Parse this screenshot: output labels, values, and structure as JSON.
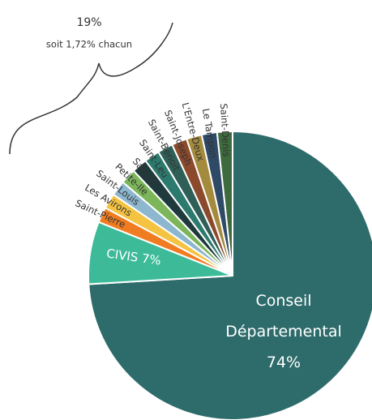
{
  "chart_data": {
    "type": "pie",
    "categories": [
      "Conseil Départemental",
      "CIVIS",
      "Saint-Pierre",
      "Les Avirons",
      "Saint-Louis",
      "Petite-Ile",
      "Salazie",
      "Saint-Leu",
      "Saint-Benoit",
      "Saint-Joseph",
      "L'Entre-Deux",
      "Le Tampon",
      "Saint-Denis"
    ],
    "values": [
      74,
      7,
      1.72,
      1.72,
      1.72,
      1.72,
      1.72,
      1.72,
      1.72,
      1.72,
      1.72,
      1.72,
      1.72
    ],
    "value_labels": [
      "74%",
      "7%",
      null,
      null,
      null,
      null,
      null,
      null,
      null,
      null,
      null,
      null,
      null
    ],
    "colors": [
      "#2e6b6b",
      "#3dbb98",
      "#f07c22",
      "#f5c342",
      "#8db6cf",
      "#7cb55a",
      "#1f3a3c",
      "#2c7a6e",
      "#2f5f57",
      "#8b4a2c",
      "#a48a3c",
      "#2f4a66",
      "#3e6b3e",
      "#2aa3a3"
    ],
    "annotations": [
      "19%",
      "soit 1,72% chacun"
    ]
  }
}
